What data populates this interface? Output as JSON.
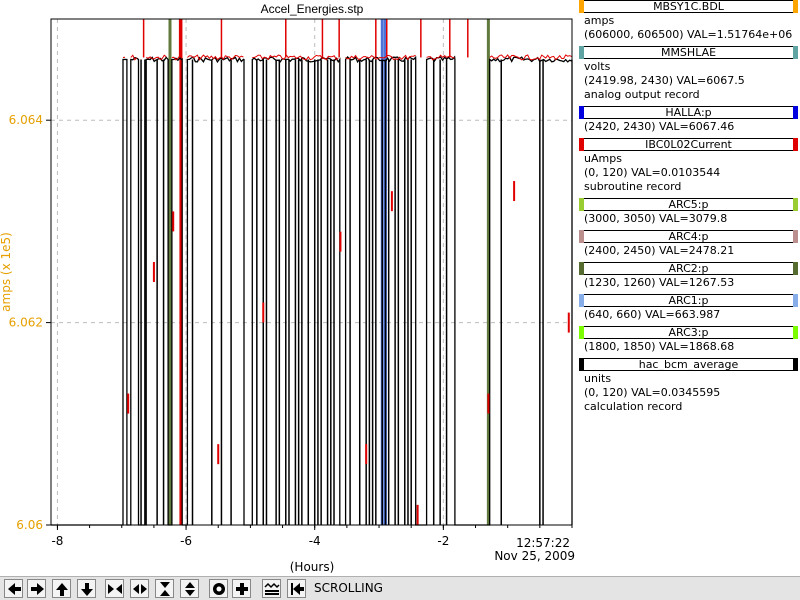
{
  "chart_data": {
    "type": "line",
    "title": "Accel_Energies.stp",
    "ylabel": "amps (x 1e5)",
    "xlabel": "(Hours)",
    "x_ticks": [
      "-8",
      "-6",
      "-4",
      "-2"
    ],
    "x_tick_values": [
      -8,
      -6,
      -4,
      -2
    ],
    "y_ticks": [
      "6.064",
      "6.062",
      "6.06"
    ],
    "y_tick_values": [
      6.064,
      6.062,
      6.06
    ],
    "xlim": [
      -8.1,
      0
    ],
    "ylim": [
      6.06,
      6.065
    ],
    "x_end_time": "12:57:22",
    "x_end_date": "Nov 25, 2009",
    "grid": true,
    "y_axis_color": "#e6a000",
    "series": [
      {
        "name": "MBSY1C.BDL",
        "color": "#000000",
        "low": 6.06,
        "high": 6.0646,
        "on_intervals": [
          [
            -6.98,
            -6.92
          ],
          [
            -6.86,
            -6.74
          ],
          [
            -6.62,
            -6.28
          ],
          [
            -6.22,
            -6.06
          ],
          [
            -5.98,
            -5.1
          ],
          [
            -4.97,
            -3.61
          ],
          [
            -3.52,
            -2.43
          ],
          [
            -2.26,
            -1.82
          ],
          [
            -1.28,
            0
          ]
        ],
        "dropouts": [
          -6.7,
          -6.64,
          -6.45,
          -6.35,
          -5.9,
          -5.6,
          -5.45,
          -5.3,
          -4.9,
          -4.8,
          -4.75,
          -4.6,
          -4.55,
          -4.45,
          -4.4,
          -4.3,
          -4.25,
          -4.2,
          -4.1,
          -4.0,
          -3.95,
          -3.9,
          -3.8,
          -3.75,
          -3.7,
          -3.45,
          -3.3,
          -3.2,
          -3.15,
          -3.1,
          -3.05,
          -2.95,
          -2.9,
          -2.85,
          -2.75,
          -2.7,
          -2.6,
          -2.55,
          -2.5,
          -2.15,
          -2.05,
          -1.95,
          -1.1,
          -0.5,
          -0.45
        ]
      },
      {
        "name": "IBC0L02Current",
        "color": "#e00000",
        "high": 6.06462,
        "spikes": [
          -6.66,
          -6.1,
          -5.45,
          -4.45,
          -3.88,
          -3.62,
          -3.05,
          -2.88,
          -2.35,
          -1.9,
          -1.62
        ],
        "bursts": [
          [
            -6.9,
            6.0612
          ],
          [
            -6.5,
            6.0625
          ],
          [
            -6.2,
            6.063
          ],
          [
            -5.5,
            6.0607
          ],
          [
            -4.8,
            6.0621
          ],
          [
            -3.6,
            6.0628
          ],
          [
            -3.2,
            6.0607
          ],
          [
            -2.8,
            6.0632
          ],
          [
            -2.4,
            6.0601
          ],
          [
            -1.3,
            6.0612
          ],
          [
            -0.9,
            6.0633
          ],
          [
            -0.05,
            6.062
          ]
        ]
      }
    ],
    "vertical_markers": [
      {
        "x": -6.25,
        "color": "#5f7a3c"
      },
      {
        "x": -6.08,
        "color": "#e00000"
      },
      {
        "x": -2.95,
        "color": "#4d73d9"
      },
      {
        "x": -2.9,
        "color": "#4d73d9"
      },
      {
        "x": -1.3,
        "color": "#5f7a3c"
      }
    ]
  },
  "legend": [
    {
      "name": "MBSY1C.BDL",
      "color": "#ffa500",
      "lines": [
        "amps",
        "(606000, 606500)  VAL=1.51764e+06"
      ]
    },
    {
      "name": "MMSHLAE",
      "color": "#5fa3a3",
      "lines": [
        "volts",
        "(2419.98, 2430) VAL=6067.5",
        "analog output record"
      ]
    },
    {
      "name": "HALLA:p",
      "color": "#0000e0",
      "lines": [
        "(2420, 2430) VAL=6067.46"
      ]
    },
    {
      "name": "IBC0L02Current",
      "color": "#e00000",
      "lines": [
        "uAmps",
        "(0, 120) VAL=0.0103544",
        "subroutine record"
      ]
    },
    {
      "name": "ARC5:p",
      "color": "#9acd32",
      "lines": [
        "(3000, 3050) VAL=3079.8"
      ]
    },
    {
      "name": "ARC4:p",
      "color": "#bc8f8f",
      "lines": [
        "(2400, 2450) VAL=2478.21"
      ]
    },
    {
      "name": "ARC2:p",
      "color": "#556b2f",
      "lines": [
        "(1230, 1260) VAL=1267.53"
      ]
    },
    {
      "name": "ARC1:p",
      "color": "#87aee8",
      "lines": [
        "(640, 660) VAL=663.987"
      ]
    },
    {
      "name": "ARC3:p",
      "color": "#7cfc00",
      "lines": [
        "(1800, 1850) VAL=1868.68"
      ]
    },
    {
      "name": "hac_bcm_average",
      "color": "#000000",
      "lines": [
        "units",
        "(0, 120) VAL=0.0345595",
        "calculation record"
      ]
    }
  ],
  "toolbar": {
    "buttons": [
      "left-arrow-icon",
      "right-arrow-icon",
      "up-arrow-icon",
      "down-arrow-icon",
      "zoom-in-horizontal-icon",
      "zoom-out-horizontal-icon",
      "zoom-in-vertical-icon",
      "zoom-out-vertical-icon",
      "circle-record-icon",
      "plus-icon",
      "waveform-icon",
      "back-to-start-icon"
    ],
    "status": "SCROLLING"
  }
}
